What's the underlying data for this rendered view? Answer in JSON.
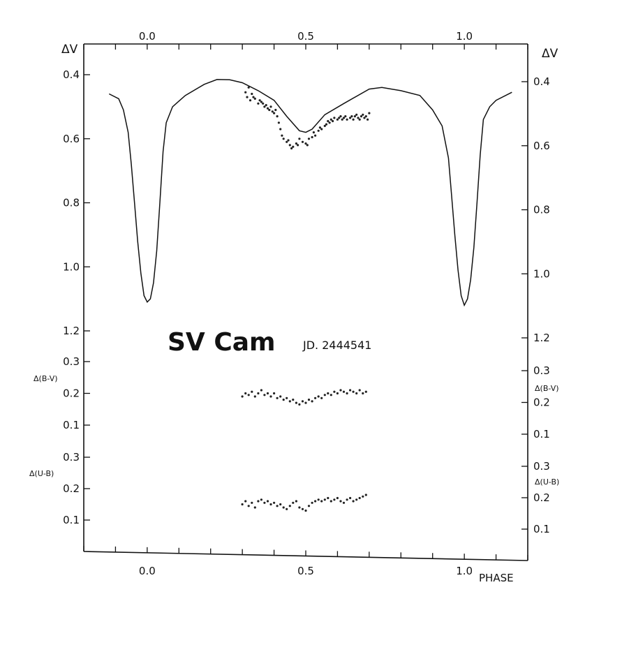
{
  "chart_data": {
    "type": "line",
    "title": "SV Cam",
    "subtitle": "JD. 2444541",
    "xlabel": "PHASE",
    "x_ticks_bottom": [
      "0.0",
      "0.5",
      "1.0"
    ],
    "x_ticks_top": [
      "0.0",
      "0.5",
      "1.0"
    ],
    "xlim": [
      -0.2,
      1.2
    ],
    "panels": [
      {
        "name": "V",
        "ylabel": "ΔV",
        "ylim": [
          0.4,
          1.2
        ],
        "y_inverted": true,
        "y_ticks_left": [
          "0.4",
          "0.6",
          "0.8",
          "1.0",
          "1.2"
        ],
        "y_ticks_right": [
          "0.4",
          "0.6",
          "0.8",
          "1.0",
          "1.2"
        ],
        "series": [
          {
            "kind": "line",
            "points": [
              [
                -0.12,
                0.46
              ],
              [
                -0.09,
                0.475
              ],
              [
                -0.075,
                0.51
              ],
              [
                -0.06,
                0.58
              ],
              [
                -0.05,
                0.68
              ],
              [
                -0.04,
                0.8
              ],
              [
                -0.03,
                0.92
              ],
              [
                -0.02,
                1.02
              ],
              [
                -0.01,
                1.09
              ],
              [
                0.0,
                1.11
              ],
              [
                0.01,
                1.1
              ],
              [
                0.02,
                1.05
              ],
              [
                0.03,
                0.95
              ],
              [
                0.04,
                0.8
              ],
              [
                0.05,
                0.64
              ],
              [
                0.06,
                0.55
              ],
              [
                0.08,
                0.5
              ],
              [
                0.12,
                0.465
              ],
              [
                0.18,
                0.43
              ],
              [
                0.22,
                0.415
              ],
              [
                0.26,
                0.416
              ],
              [
                0.3,
                0.425
              ],
              [
                0.35,
                0.45
              ],
              [
                0.4,
                0.48
              ],
              [
                0.44,
                0.53
              ],
              [
                0.48,
                0.575
              ],
              [
                0.5,
                0.58
              ],
              [
                0.52,
                0.57
              ],
              [
                0.56,
                0.525
              ],
              [
                0.62,
                0.49
              ],
              [
                0.7,
                0.445
              ],
              [
                0.74,
                0.44
              ],
              [
                0.8,
                0.45
              ],
              [
                0.86,
                0.465
              ],
              [
                0.9,
                0.51
              ],
              [
                0.93,
                0.56
              ],
              [
                0.95,
                0.66
              ],
              [
                0.96,
                0.78
              ],
              [
                0.97,
                0.9
              ],
              [
                0.98,
                1.01
              ],
              [
                0.99,
                1.09
              ],
              [
                1.0,
                1.12
              ],
              [
                1.01,
                1.1
              ],
              [
                1.02,
                1.04
              ],
              [
                1.03,
                0.94
              ],
              [
                1.04,
                0.8
              ],
              [
                1.05,
                0.65
              ],
              [
                1.06,
                0.54
              ],
              [
                1.08,
                0.5
              ],
              [
                1.1,
                0.48
              ],
              [
                1.15,
                0.455
              ]
            ]
          },
          {
            "kind": "scatter",
            "points": [
              [
                0.31,
                0.455
              ],
              [
                0.315,
                0.47
              ],
              [
                0.32,
                0.44
              ],
              [
                0.325,
                0.48
              ],
              [
                0.33,
                0.46
              ],
              [
                0.335,
                0.47
              ],
              [
                0.34,
                0.475
              ],
              [
                0.35,
                0.49
              ],
              [
                0.355,
                0.48
              ],
              [
                0.36,
                0.485
              ],
              [
                0.365,
                0.49
              ],
              [
                0.37,
                0.5
              ],
              [
                0.375,
                0.495
              ],
              [
                0.38,
                0.505
              ],
              [
                0.385,
                0.51
              ],
              [
                0.39,
                0.5
              ],
              [
                0.395,
                0.515
              ],
              [
                0.4,
                0.52
              ],
              [
                0.405,
                0.51
              ],
              [
                0.41,
                0.53
              ],
              [
                0.415,
                0.55
              ],
              [
                0.42,
                0.57
              ],
              [
                0.425,
                0.59
              ],
              [
                0.43,
                0.6
              ],
              [
                0.44,
                0.61
              ],
              [
                0.445,
                0.605
              ],
              [
                0.45,
                0.62
              ],
              [
                0.455,
                0.63
              ],
              [
                0.46,
                0.625
              ],
              [
                0.47,
                0.615
              ],
              [
                0.475,
                0.62
              ],
              [
                0.48,
                0.6
              ],
              [
                0.49,
                0.61
              ],
              [
                0.5,
                0.615
              ],
              [
                0.505,
                0.62
              ],
              [
                0.51,
                0.6
              ],
              [
                0.52,
                0.595
              ],
              [
                0.525,
                0.58
              ],
              [
                0.53,
                0.59
              ],
              [
                0.54,
                0.575
              ],
              [
                0.545,
                0.565
              ],
              [
                0.55,
                0.57
              ],
              [
                0.56,
                0.56
              ],
              [
                0.565,
                0.555
              ],
              [
                0.57,
                0.545
              ],
              [
                0.575,
                0.55
              ],
              [
                0.58,
                0.54
              ],
              [
                0.585,
                0.545
              ],
              [
                0.59,
                0.535
              ],
              [
                0.6,
                0.54
              ],
              [
                0.605,
                0.535
              ],
              [
                0.61,
                0.53
              ],
              [
                0.615,
                0.54
              ],
              [
                0.62,
                0.535
              ],
              [
                0.625,
                0.53
              ],
              [
                0.63,
                0.54
              ],
              [
                0.64,
                0.535
              ],
              [
                0.645,
                0.53
              ],
              [
                0.65,
                0.54
              ],
              [
                0.655,
                0.53
              ],
              [
                0.66,
                0.525
              ],
              [
                0.665,
                0.535
              ],
              [
                0.67,
                0.54
              ],
              [
                0.675,
                0.53
              ],
              [
                0.68,
                0.525
              ],
              [
                0.685,
                0.535
              ],
              [
                0.69,
                0.53
              ],
              [
                0.695,
                0.54
              ],
              [
                0.7,
                0.52
              ]
            ]
          }
        ]
      },
      {
        "name": "B-V",
        "ylabel": "Δ(B-V)",
        "ylim": [
          0.0,
          0.3
        ],
        "y_ticks_left": [
          "0.3",
          "0.2",
          "0.1"
        ],
        "y_ticks_right": [
          "0.3",
          "0.2",
          "0.1"
        ],
        "series": [
          {
            "kind": "scatter",
            "points": [
              [
                0.3,
                0.19
              ],
              [
                0.31,
                0.2
              ],
              [
                0.32,
                0.195
              ],
              [
                0.33,
                0.205
              ],
              [
                0.34,
                0.19
              ],
              [
                0.35,
                0.2
              ],
              [
                0.36,
                0.21
              ],
              [
                0.37,
                0.195
              ],
              [
                0.38,
                0.2
              ],
              [
                0.39,
                0.19
              ],
              [
                0.4,
                0.2
              ],
              [
                0.41,
                0.185
              ],
              [
                0.42,
                0.19
              ],
              [
                0.43,
                0.18
              ],
              [
                0.44,
                0.185
              ],
              [
                0.45,
                0.175
              ],
              [
                0.46,
                0.18
              ],
              [
                0.47,
                0.17
              ],
              [
                0.48,
                0.165
              ],
              [
                0.49,
                0.175
              ],
              [
                0.5,
                0.17
              ],
              [
                0.51,
                0.18
              ],
              [
                0.52,
                0.175
              ],
              [
                0.53,
                0.185
              ],
              [
                0.54,
                0.19
              ],
              [
                0.55,
                0.185
              ],
              [
                0.56,
                0.195
              ],
              [
                0.57,
                0.2
              ],
              [
                0.58,
                0.195
              ],
              [
                0.59,
                0.205
              ],
              [
                0.6,
                0.2
              ],
              [
                0.61,
                0.21
              ],
              [
                0.62,
                0.205
              ],
              [
                0.63,
                0.2
              ],
              [
                0.64,
                0.21
              ],
              [
                0.65,
                0.205
              ],
              [
                0.66,
                0.2
              ],
              [
                0.67,
                0.21
              ],
              [
                0.68,
                0.2
              ],
              [
                0.69,
                0.205
              ]
            ]
          }
        ]
      },
      {
        "name": "U-B",
        "ylabel": "Δ(U-B)",
        "ylim": [
          0.0,
          0.3
        ],
        "y_ticks_left": [
          "0.3",
          "0.2",
          "0.1"
        ],
        "y_ticks_right": [
          "0.3",
          "0.2",
          "0.1"
        ],
        "series": [
          {
            "kind": "scatter",
            "points": [
              [
                0.3,
                0.15
              ],
              [
                0.31,
                0.16
              ],
              [
                0.32,
                0.145
              ],
              [
                0.33,
                0.155
              ],
              [
                0.34,
                0.14
              ],
              [
                0.35,
                0.16
              ],
              [
                0.36,
                0.165
              ],
              [
                0.37,
                0.155
              ],
              [
                0.38,
                0.16
              ],
              [
                0.39,
                0.15
              ],
              [
                0.4,
                0.155
              ],
              [
                0.41,
                0.145
              ],
              [
                0.42,
                0.15
              ],
              [
                0.43,
                0.14
              ],
              [
                0.44,
                0.135
              ],
              [
                0.45,
                0.145
              ],
              [
                0.46,
                0.155
              ],
              [
                0.47,
                0.16
              ],
              [
                0.48,
                0.14
              ],
              [
                0.49,
                0.135
              ],
              [
                0.5,
                0.13
              ],
              [
                0.51,
                0.145
              ],
              [
                0.52,
                0.155
              ],
              [
                0.53,
                0.16
              ],
              [
                0.54,
                0.165
              ],
              [
                0.55,
                0.16
              ],
              [
                0.56,
                0.165
              ],
              [
                0.57,
                0.17
              ],
              [
                0.58,
                0.16
              ],
              [
                0.59,
                0.165
              ],
              [
                0.6,
                0.17
              ],
              [
                0.61,
                0.16
              ],
              [
                0.62,
                0.155
              ],
              [
                0.63,
                0.165
              ],
              [
                0.64,
                0.17
              ],
              [
                0.65,
                0.16
              ],
              [
                0.66,
                0.165
              ],
              [
                0.67,
                0.17
              ],
              [
                0.68,
                0.175
              ],
              [
                0.69,
                0.18
              ]
            ]
          }
        ]
      }
    ],
    "grid": false,
    "legend": "none"
  }
}
